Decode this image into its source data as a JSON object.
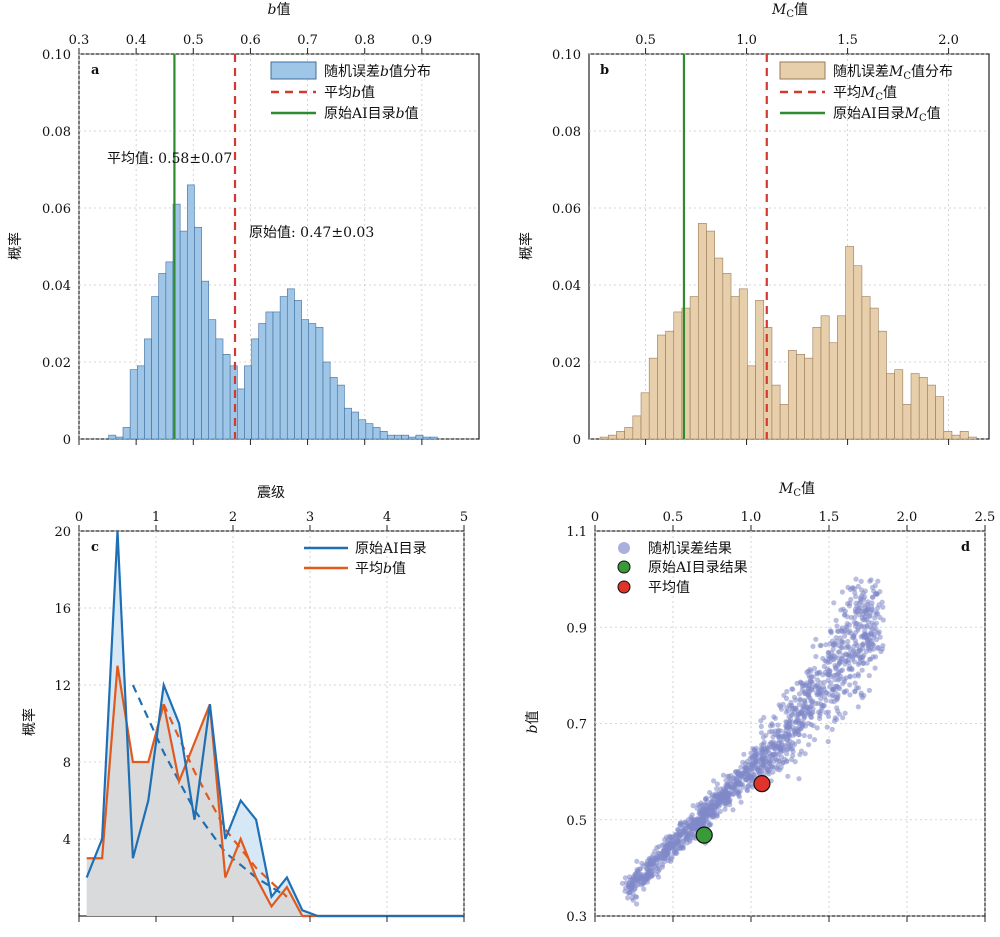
{
  "chart_data": [
    {
      "panel": "a",
      "type": "bar",
      "xlabel": "b值",
      "ylabel": "概率",
      "xlim": [
        0.3,
        1.0
      ],
      "ylim": [
        0,
        0.1
      ],
      "xticks": [
        "0.3",
        "0.4",
        "0.5",
        "0.6",
        "0.7",
        "0.8",
        "0.9"
      ],
      "yticks": [
        "0",
        "0.02",
        "0.04",
        "0.06",
        "0.08",
        "0.10"
      ],
      "bin_width": 0.0125,
      "bin_start": 0.352,
      "values": [
        0.001,
        0.0005,
        0.003,
        0.018,
        0.019,
        0.026,
        0.037,
        0.043,
        0.046,
        0.061,
        0.054,
        0.066,
        0.055,
        0.041,
        0.031,
        0.026,
        0.022,
        0.019,
        0.013,
        0.019,
        0.026,
        0.03,
        0.033,
        0.033,
        0.037,
        0.039,
        0.036,
        0.031,
        0.03,
        0.029,
        0.02,
        0.016,
        0.014,
        0.008,
        0.007,
        0.005,
        0.004,
        0.003,
        0.002,
        0.001,
        0.001,
        0.001,
        0.0005,
        0.001,
        0.0005,
        0.0005
      ],
      "colors": {
        "hist": "#9fc6e6",
        "hist_edge": "#3d6ea0",
        "mean": "#d33a2f",
        "orig": "#2e8b2e"
      },
      "mean_line_x": 0.573,
      "orig_line_x": 0.467,
      "legend": [
        "随机误差b值分布",
        "平均b值",
        "原始AI目录b值"
      ],
      "annotations": [
        "平均值: 0.58±0.07",
        "原始值: 0.47±0.03"
      ]
    },
    {
      "panel": "b",
      "type": "bar",
      "xlabel": "Mc值",
      "ylabel": "概率",
      "xlim": [
        0.22,
        2.2
      ],
      "ylim": [
        0,
        0.1
      ],
      "xticks": [
        "0.5",
        "1.0",
        "1.5",
        "2.0"
      ],
      "yticks": [
        "0",
        "0.02",
        "0.04",
        "0.06",
        "0.08",
        "0.10"
      ],
      "bin_width": 0.0405,
      "bin_start": 0.275,
      "values": [
        0.0005,
        0.001,
        0.002,
        0.003,
        0.006,
        0.012,
        0.021,
        0.027,
        0.028,
        0.033,
        0.034,
        0.037,
        0.056,
        0.054,
        0.047,
        0.043,
        0.037,
        0.039,
        0.019,
        0.036,
        0.029,
        0.014,
        0.009,
        0.023,
        0.022,
        0.021,
        0.029,
        0.032,
        0.025,
        0.032,
        0.05,
        0.045,
        0.037,
        0.034,
        0.028,
        0.017,
        0.018,
        0.009,
        0.017,
        0.016,
        0.014,
        0.011,
        0.002,
        0.001,
        0.002,
        0.0005
      ],
      "colors": {
        "hist": "#e8cfac",
        "hist_edge": "#9a7a58",
        "mean": "#d33a2f",
        "orig": "#2e8b2e"
      },
      "mean_line_x": 1.1,
      "orig_line_x": 0.69,
      "legend": [
        "随机误差Mc值分布",
        "平均Mc值",
        "原始AI目录Mc值"
      ]
    },
    {
      "panel": "c",
      "type": "line",
      "xlabel": "震级",
      "ylabel": "概率",
      "xlim": [
        0,
        5
      ],
      "ylim": [
        0,
        20
      ],
      "xticks": [
        "0",
        "1",
        "2",
        "3",
        "4",
        "5"
      ],
      "yticks": [
        "4",
        "8",
        "12",
        "16",
        "20"
      ],
      "series": [
        {
          "name": "原始AI目录",
          "color": "#1f6fb5",
          "x": [
            0.1,
            0.3,
            0.5,
            0.7,
            0.9,
            1.1,
            1.3,
            1.5,
            1.7,
            1.9,
            2.1,
            2.3,
            2.5,
            2.7,
            2.9,
            3.1,
            3.3,
            3.5,
            3.7,
            3.9,
            4.1,
            4.3,
            4.5,
            4.7,
            4.9,
            5.0
          ],
          "values": [
            2,
            4,
            20,
            3,
            6,
            12,
            10,
            5,
            11,
            4,
            6,
            5,
            1,
            2,
            0.3,
            0,
            0,
            0,
            0,
            0,
            0,
            0,
            0,
            0,
            0,
            0
          ]
        },
        {
          "name": "平均b值",
          "color": "#e05a1e",
          "x": [
            0.1,
            0.3,
            0.5,
            0.7,
            0.9,
            1.1,
            1.3,
            1.5,
            1.7,
            1.9,
            2.1,
            2.3,
            2.5,
            2.7,
            2.9,
            3.1,
            3.3,
            3.5,
            3.7,
            3.9,
            4.1,
            4.3,
            4.5,
            4.7,
            4.9,
            5.0
          ],
          "values": [
            3,
            3,
            13,
            8,
            8,
            11,
            7,
            9,
            11,
            2,
            4,
            2,
            0.5,
            1.5,
            0,
            0,
            0,
            0,
            0,
            0,
            0,
            0,
            0,
            0,
            0,
            0
          ]
        }
      ],
      "fit_blue": {
        "x": [
          0.7,
          1.1,
          1.5,
          1.9,
          2.3,
          2.7
        ],
        "values": [
          12,
          8.5,
          5.5,
          3.3,
          2.0,
          1.0
        ]
      },
      "fit_orange": {
        "x": [
          1.1,
          1.5,
          1.9,
          2.3,
          2.7
        ],
        "values": [
          11,
          7.5,
          4.5,
          2.5,
          1.0
        ]
      }
    },
    {
      "panel": "d",
      "type": "scatter",
      "xlabel": "Mc值",
      "ylabel": "b值",
      "xlim": [
        0,
        2.5
      ],
      "ylim": [
        0.3,
        1.1
      ],
      "xticks": [
        "0",
        "0.5",
        "1.0",
        "1.5",
        "2.0",
        "2.5"
      ],
      "yticks": [
        "0.3",
        "0.5",
        "0.7",
        "0.9",
        "1.1"
      ],
      "cloud_color": "#7f88c8",
      "original_point": {
        "x": 0.7,
        "y": 0.468,
        "color": "#3a9a3a"
      },
      "mean_point": {
        "x": 1.07,
        "y": 0.575,
        "color": "#e0332a"
      },
      "legend": [
        "随机误差结果",
        "原始AI目录结果",
        "平均值"
      ]
    }
  ]
}
